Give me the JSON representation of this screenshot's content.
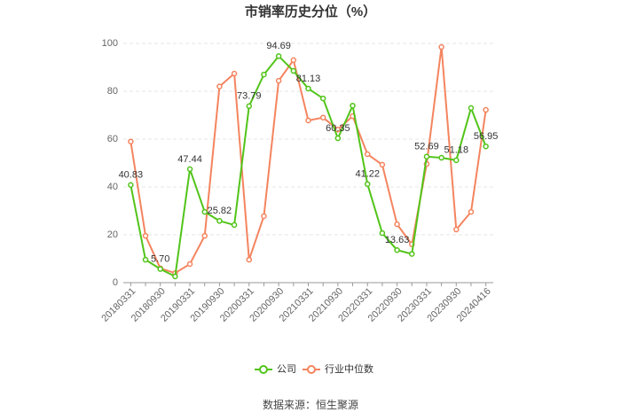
{
  "chart_data": {
    "type": "line",
    "title": "市销率历史分位（%）",
    "categories": [
      "20180331",
      null,
      "20180930",
      null,
      "20190331",
      null,
      "20190930",
      null,
      "20200331",
      null,
      "20200930",
      null,
      "20210331",
      null,
      "20210930",
      null,
      "20220331",
      null,
      "20220930",
      null,
      "20230331",
      null,
      "20230930",
      null,
      "20240416"
    ],
    "series": [
      {
        "name": "公司",
        "color": "#52c41a",
        "values": [
          40.83,
          9.6,
          5.7,
          2.6,
          47.44,
          29.6,
          25.82,
          24.1,
          73.79,
          87,
          94.69,
          88.5,
          81.13,
          77,
          60.35,
          74,
          41.22,
          20.7,
          13.63,
          12,
          52.69,
          52.2,
          51.18,
          73,
          56.95
        ],
        "value_labels": [
          "40.83",
          null,
          "5.70",
          null,
          "47.44",
          null,
          "25.82",
          null,
          "73.79",
          null,
          "94.69",
          null,
          "81.13",
          null,
          "60.35",
          null,
          "41.22",
          null,
          "13.63",
          null,
          "52.69",
          null,
          "51.18",
          null,
          "56.95"
        ]
      },
      {
        "name": "行业中位数",
        "color": "#f4845f",
        "values": [
          59,
          19.6,
          6,
          4,
          7.8,
          19.6,
          82,
          87.4,
          9.6,
          27.8,
          84.4,
          93,
          67.8,
          69,
          64,
          69.6,
          53.7,
          49.3,
          24.4,
          16,
          49.6,
          98.5,
          22.2,
          29.6,
          72.2
        ]
      }
    ],
    "ylim": [
      0,
      100
    ],
    "yticks": [
      0,
      20,
      40,
      60,
      80,
      100
    ],
    "grid": true,
    "legend": "bottom",
    "source": "数据来源：恒生聚源"
  }
}
